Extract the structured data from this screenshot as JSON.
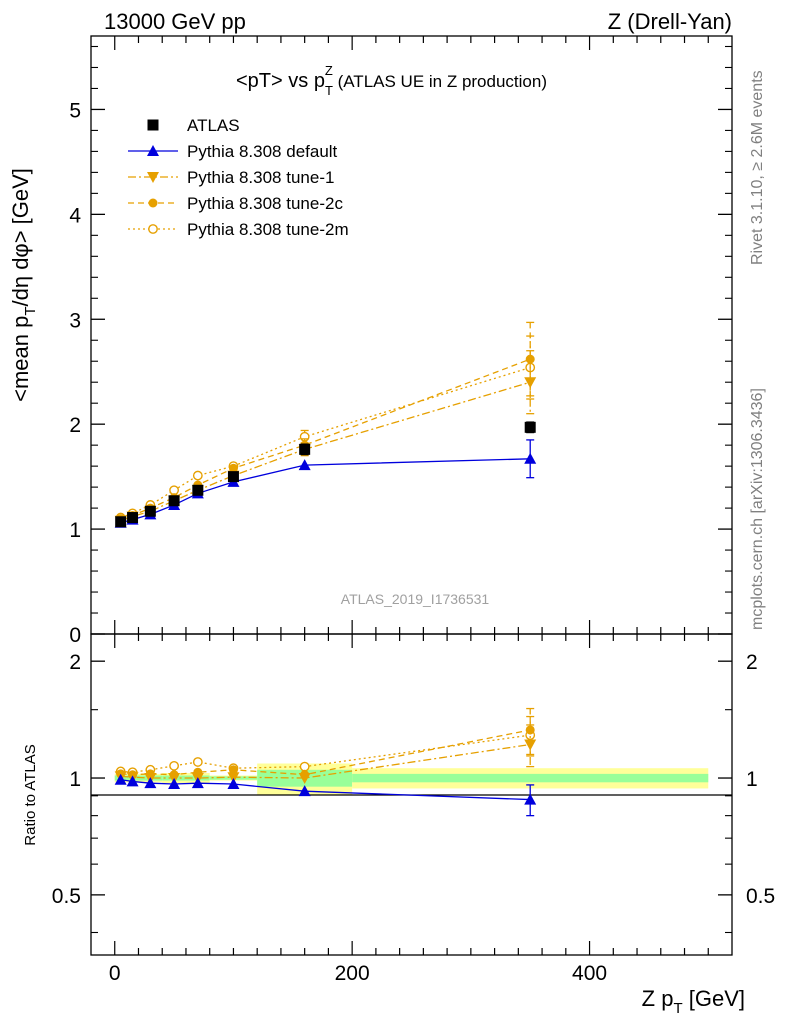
{
  "header": {
    "left": "13000 GeV pp",
    "right": "Z (Drell-Yan)"
  },
  "side_labels": {
    "rivet": "Rivet 3.1.10, ≥ 2.6M events",
    "mcplots": "mcplots.cern.ch [arXiv:1306.3436]"
  },
  "colors": {
    "atlas": "#000000",
    "default": "#0000dd",
    "tunes": "#e6a000",
    "band_inner": "#99ff99",
    "band_outer": "#ffff99"
  },
  "chart_data": [
    {
      "type": "line",
      "panel": "main",
      "title": "<pT> vs p_T^Z (ATLAS UE in Z production)",
      "title_main": "<pT> vs p",
      "title_sub": "T",
      "title_sup": "Z",
      "title_rest": " (ATLAS UE in Z production)",
      "ylabel": "<mean p_T/dη dφ> [GeV]",
      "ylabel_parts": {
        "a": "<mean p",
        "sub": "T",
        "b": "/dη dφ> [GeV]"
      },
      "watermark": "ATLAS_2019_I1736531",
      "xlim": [
        -20,
        520
      ],
      "ylim": [
        0,
        5.7
      ],
      "yticks": [
        0,
        1,
        2,
        3,
        4,
        5
      ],
      "yticklabels": [
        "0",
        "1",
        "2",
        "3",
        "4",
        "5"
      ],
      "legend_position": "top-left",
      "series": [
        {
          "name": "ATLAS",
          "marker": "square",
          "style": "none",
          "color": "#000000",
          "x": [
            5,
            15,
            30,
            50,
            70,
            100,
            160,
            350
          ],
          "y": [
            1.07,
            1.11,
            1.17,
            1.27,
            1.37,
            1.5,
            1.76,
            1.97
          ],
          "yerr": [
            0.01,
            0.01,
            0.01,
            0.02,
            0.02,
            0.03,
            0.05,
            0.05
          ]
        },
        {
          "name": "Pythia 8.308 default",
          "marker": "triangle-up",
          "style": "solid",
          "color": "#0000dd",
          "x": [
            5,
            15,
            30,
            50,
            70,
            100,
            160,
            350
          ],
          "y": [
            1.06,
            1.09,
            1.14,
            1.23,
            1.34,
            1.45,
            1.61,
            1.67
          ],
          "yerr": [
            0.01,
            0.01,
            0.01,
            0.01,
            0.02,
            0.03,
            0.03,
            0.18
          ]
        },
        {
          "name": "Pythia 8.308 tune-1",
          "marker": "triangle-down",
          "style": "dashdot",
          "color": "#e6a000",
          "x": [
            5,
            15,
            30,
            50,
            70,
            100,
            160,
            350
          ],
          "y": [
            1.08,
            1.12,
            1.17,
            1.27,
            1.37,
            1.51,
            1.76,
            2.4
          ],
          "yerr": [
            0.01,
            0.01,
            0.01,
            0.02,
            0.02,
            0.03,
            0.06,
            0.3
          ]
        },
        {
          "name": "Pythia 8.308 tune-2c",
          "marker": "circle",
          "style": "dashed",
          "color": "#e6a000",
          "x": [
            5,
            15,
            30,
            50,
            70,
            100,
            160,
            350
          ],
          "y": [
            1.1,
            1.13,
            1.2,
            1.3,
            1.42,
            1.58,
            1.8,
            2.62
          ],
          "yerr": [
            0.01,
            0.01,
            0.01,
            0.02,
            0.02,
            0.03,
            0.06,
            0.35
          ]
        },
        {
          "name": "Pythia 8.308 tune-2m",
          "marker": "circle-open",
          "style": "dotted",
          "color": "#e6a000",
          "x": [
            5,
            15,
            30,
            50,
            70,
            100,
            160,
            350
          ],
          "y": [
            1.11,
            1.15,
            1.23,
            1.37,
            1.51,
            1.6,
            1.88,
            2.54
          ],
          "yerr": [
            0.01,
            0.01,
            0.01,
            0.02,
            0.02,
            0.03,
            0.06,
            0.3
          ]
        }
      ]
    },
    {
      "type": "line",
      "panel": "ratio",
      "ylabel": "Ratio to ATLAS",
      "xlabel": "Z p_T [GeV]",
      "xlabel_parts": {
        "a": "Z p",
        "sub": "T",
        "b": " [GeV]"
      },
      "xlim": [
        -20,
        520
      ],
      "xticks": [
        0,
        200,
        400
      ],
      "xticklabels": [
        "0",
        "200",
        "400"
      ],
      "ylim": [
        0.35,
        2.35
      ],
      "yscale": "log",
      "yticks": [
        0.5,
        1,
        2
      ],
      "yticklabels": [
        "0.5",
        "1",
        "2"
      ],
      "bands": [
        {
          "x0": 0,
          "x1": 10,
          "inner": [
            0.985,
            1.015
          ],
          "outer": [
            0.975,
            1.025
          ]
        },
        {
          "x0": 10,
          "x1": 20,
          "inner": [
            0.985,
            1.015
          ],
          "outer": [
            0.975,
            1.025
          ]
        },
        {
          "x0": 20,
          "x1": 40,
          "inner": [
            0.985,
            1.015
          ],
          "outer": [
            0.975,
            1.025
          ]
        },
        {
          "x0": 40,
          "x1": 60,
          "inner": [
            0.985,
            1.015
          ],
          "outer": [
            0.97,
            1.03
          ]
        },
        {
          "x0": 60,
          "x1": 80,
          "inner": [
            0.985,
            1.015
          ],
          "outer": [
            0.97,
            1.03
          ]
        },
        {
          "x0": 80,
          "x1": 120,
          "inner": [
            0.99,
            1.01
          ],
          "outer": [
            0.985,
            1.015
          ]
        },
        {
          "x0": 120,
          "x1": 200,
          "inner": [
            0.95,
            1.05
          ],
          "outer": [
            0.905,
            1.09
          ]
        },
        {
          "x0": 200,
          "x1": 500,
          "inner": [
            0.975,
            1.025
          ],
          "outer": [
            0.94,
            1.06
          ]
        }
      ],
      "series": [
        {
          "name": "Pythia 8.308 default",
          "marker": "triangle-up",
          "style": "solid",
          "color": "#0000dd",
          "x": [
            5,
            15,
            30,
            50,
            70,
            100,
            160,
            350
          ],
          "y": [
            0.99,
            0.98,
            0.97,
            0.965,
            0.97,
            0.965,
            0.925,
            0.88
          ],
          "yerr": [
            0.01,
            0.01,
            0.01,
            0.01,
            0.01,
            0.01,
            0.02,
            0.08
          ]
        },
        {
          "name": "Pythia 8.308 tune-1",
          "marker": "triangle-down",
          "style": "dashdot",
          "color": "#e6a000",
          "x": [
            5,
            15,
            30,
            50,
            70,
            100,
            160,
            350
          ],
          "y": [
            1.01,
            1.005,
            1.0,
            1.0,
            1.0,
            1.005,
            1.0,
            1.22
          ],
          "yerr": [
            0.01,
            0.01,
            0.01,
            0.01,
            0.01,
            0.02,
            0.03,
            0.15
          ]
        },
        {
          "name": "Pythia 8.308 tune-2c",
          "marker": "circle",
          "style": "dashed",
          "color": "#e6a000",
          "x": [
            5,
            15,
            30,
            50,
            70,
            100,
            160,
            350
          ],
          "y": [
            1.025,
            1.02,
            1.025,
            1.02,
            1.035,
            1.05,
            1.02,
            1.33
          ],
          "yerr": [
            0.01,
            0.01,
            0.01,
            0.01,
            0.01,
            0.02,
            0.03,
            0.18
          ]
        },
        {
          "name": "Pythia 8.308 tune-2m",
          "marker": "circle-open",
          "style": "dotted",
          "color": "#e6a000",
          "x": [
            5,
            15,
            30,
            50,
            70,
            100,
            160,
            350
          ],
          "y": [
            1.04,
            1.035,
            1.05,
            1.075,
            1.1,
            1.06,
            1.07,
            1.29
          ],
          "yerr": [
            0.01,
            0.01,
            0.01,
            0.01,
            0.01,
            0.02,
            0.03,
            0.15
          ]
        }
      ]
    }
  ]
}
